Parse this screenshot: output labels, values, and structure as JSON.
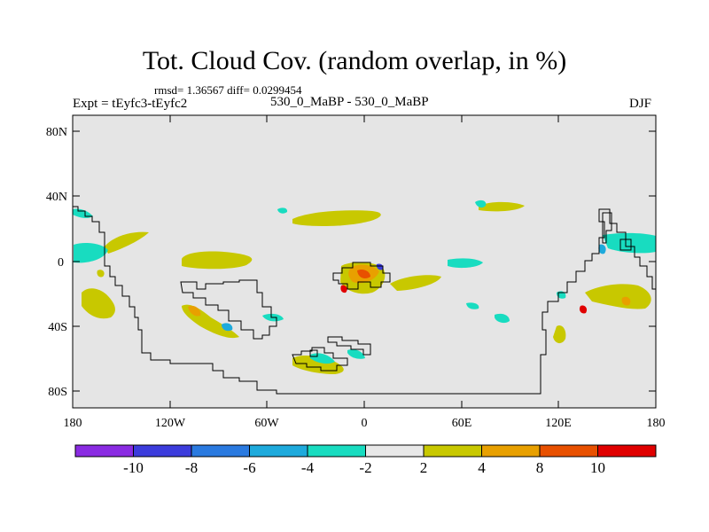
{
  "header": {
    "title": "Tot. Cloud Cov. (random overlap, in %)",
    "stats": "rmsd= 1.36567 diff= 0.0299454",
    "expt": "Expt = tEyfc3-tEyfc2",
    "case": "530_0_MaBP - 530_0_MaBP",
    "season": "DJF"
  },
  "map": {
    "x_ticks": [
      "180",
      "120W",
      "60W",
      "0",
      "60E",
      "120E",
      "180"
    ],
    "y_ticks": [
      "80N",
      "40N",
      "0",
      "40S",
      "80S"
    ],
    "background_color": "#e5e5e5"
  },
  "colorbar": {
    "labels": [
      "-10",
      "-8",
      "-6",
      "-4",
      "-2",
      "2",
      "4",
      "8",
      "10"
    ],
    "colors": [
      "#8a2be2",
      "#3c3cdc",
      "#2a7ae0",
      "#1eaadc",
      "#18dcc0",
      "#e8e8e8",
      "#c8c800",
      "#e8a000",
      "#e85000",
      "#e00000"
    ]
  }
}
